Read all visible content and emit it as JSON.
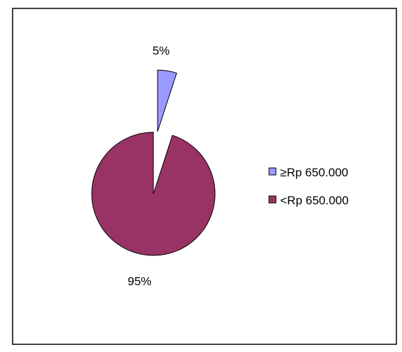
{
  "chart_data": {
    "type": "pie",
    "title": "",
    "categories": [
      "≥Rp 650.000",
      "<Rp 650.000"
    ],
    "values": [
      5,
      95
    ],
    "data_labels": [
      "5%",
      "95%"
    ],
    "colors": [
      "#9999FF",
      "#993366"
    ],
    "exploded": [
      true,
      false
    ],
    "legend": {
      "position": "right",
      "entries": [
        "≥Rp 650.000",
        "<Rp 650.000"
      ]
    }
  }
}
